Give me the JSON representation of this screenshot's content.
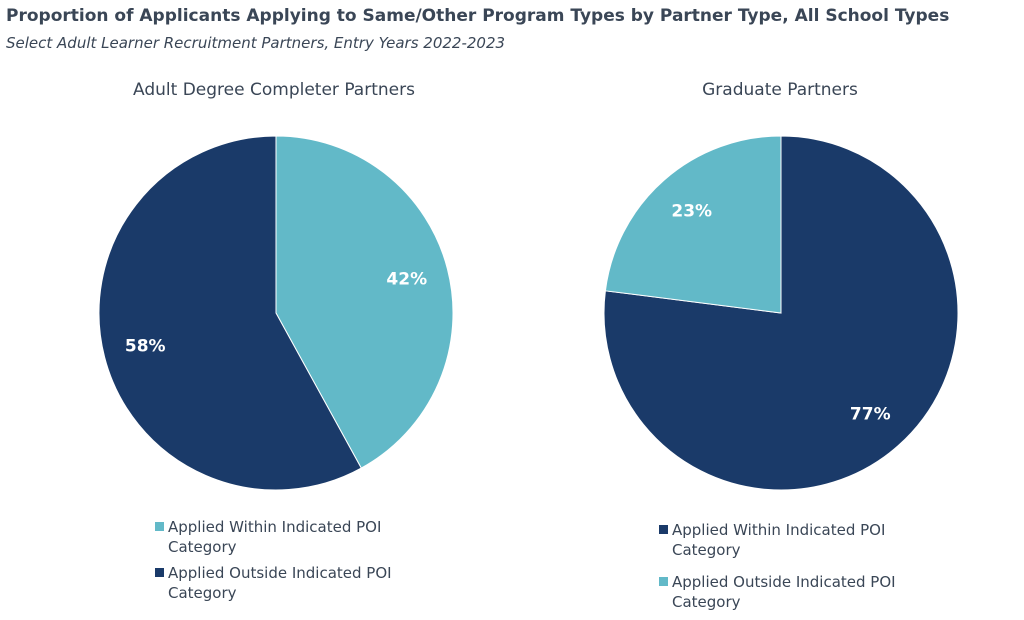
{
  "header": {
    "title": "Proportion of Applicants Applying to Same/Other Program Types by Partner Type, All School Types",
    "subtitle": "Select Adult Learner Recruitment Partners, Entry Years 2022-2023"
  },
  "colors": {
    "applied_within_adult": "#62b9c8",
    "applied_outside_adult": "#1a3a69",
    "applied_within_graduate": "#1a3a69",
    "applied_outside_graduate": "#62b9c8"
  },
  "chart_data": [
    {
      "type": "pie",
      "title": "Adult Degree Completer Partners",
      "categories": [
        "Applied Within Indicated POI Category",
        "Applied Outside Indicated POI Category"
      ],
      "values": [
        42,
        58
      ],
      "labels": [
        "42%",
        "58%"
      ],
      "colors": [
        "#62b9c8",
        "#1a3a69"
      ],
      "legend_position": "bottom"
    },
    {
      "type": "pie",
      "title": "Graduate Partners",
      "categories": [
        "Applied Within Indicated POI Category",
        "Applied Outside Indicated POI Category"
      ],
      "values": [
        77,
        23
      ],
      "labels": [
        "77%",
        "23%"
      ],
      "colors": [
        "#1a3a69",
        "#62b9c8"
      ],
      "legend_position": "bottom"
    }
  ]
}
